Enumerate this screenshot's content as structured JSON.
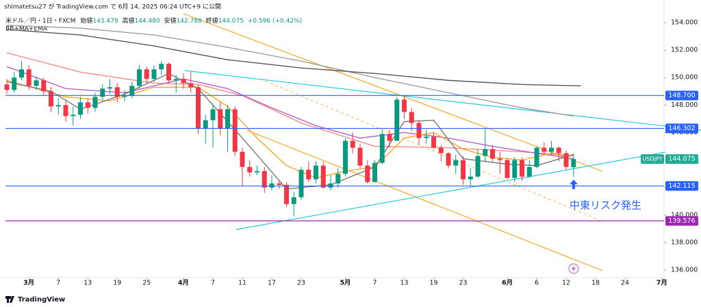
{
  "chart_data": {
    "type": "candlestick",
    "published": "shimatetsu27 が TradingView.com で 6月 14, 2025 06:24 UTC+9 に公開",
    "title": "米ドル／円・1日・FXCM",
    "stats": [
      {
        "label": "始値",
        "text": "143.479"
      },
      {
        "label": "高値",
        "text": "144.480"
      },
      {
        "label": "安値",
        "text": "142.788"
      },
      {
        "label": "終値",
        "text": "144.075"
      }
    ],
    "change": "+0.596 (+0.42%)",
    "indicators": "BB+MA+EMA",
    "annotation": "中東リスク発生",
    "brand": "TradingView",
    "up_color": "#089981",
    "down_color": "#f23645",
    "open": [
      149.5,
      149.1,
      150.0,
      150.6,
      149.4,
      149.8,
      149.0,
      147.9,
      148.0,
      147.2,
      147.3,
      148.2,
      147.8,
      148.6,
      149.2,
      149.3,
      148.6,
      148.7,
      149.4,
      150.6,
      149.9,
      150.6,
      151.0,
      149.8,
      149.9,
      149.6,
      149.3,
      146.3,
      146.9,
      147.7,
      146.3,
      147.7,
      144.6,
      143.5,
      143.1,
      143.2,
      142.0,
      142.3,
      142.2,
      140.8,
      141.3,
      143.3,
      142.6,
      143.6,
      142.0,
      142.3,
      143.0,
      145.4,
      144.9,
      143.6,
      142.4,
      143.8,
      145.9,
      145.4,
      148.4,
      147.5,
      146.7,
      145.6,
      145.7,
      144.9,
      144.5,
      143.6,
      144.0,
      142.6,
      142.8,
      144.3,
      144.8,
      144.1,
      144.0,
      142.7,
      144.0,
      142.8,
      143.5,
      144.9,
      144.6,
      144.9,
      144.5,
      143.479
    ],
    "high": [
      149.9,
      150.4,
      151.2,
      150.9,
      150.1,
      150.0,
      149.3,
      148.5,
      148.3,
      147.9,
      148.6,
      148.5,
      148.9,
      149.5,
      149.9,
      149.6,
      149.1,
      149.7,
      150.9,
      150.8,
      150.9,
      151.2,
      151.1,
      150.2,
      150.3,
      150.4,
      149.5,
      147.3,
      148.1,
      148.2,
      148.0,
      147.9,
      144.9,
      144.0,
      143.6,
      143.5,
      142.9,
      142.5,
      142.4,
      141.7,
      143.5,
      143.9,
      143.9,
      143.9,
      142.9,
      143.4,
      145.6,
      146.0,
      145.2,
      144.0,
      144.0,
      146.2,
      146.2,
      148.6,
      148.7,
      147.8,
      146.9,
      146.2,
      146.0,
      145.1,
      144.6,
      144.4,
      144.3,
      143.4,
      144.8,
      146.3,
      145.1,
      144.6,
      144.1,
      144.2,
      144.2,
      144.0,
      145.0,
      145.3,
      145.4,
      145.0,
      144.7,
      144.48
    ],
    "low": [
      148.8,
      148.9,
      149.8,
      149.1,
      149.1,
      148.7,
      147.5,
      147.3,
      146.8,
      146.5,
      147.0,
      147.4,
      147.5,
      148.4,
      148.8,
      148.2,
      148.3,
      148.5,
      149.2,
      149.6,
      149.7,
      150.2,
      149.6,
      148.9,
      149.2,
      148.9,
      145.9,
      145.2,
      144.9,
      145.8,
      144.6,
      144.3,
      142.1,
      142.8,
      142.9,
      141.6,
      141.8,
      141.9,
      140.6,
      139.9,
      141.1,
      142.4,
      142.3,
      141.9,
      141.8,
      142.0,
      142.8,
      144.5,
      143.4,
      142.3,
      142.4,
      143.7,
      144.9,
      145.4,
      147.0,
      146.1,
      145.1,
      145.2,
      144.8,
      143.9,
      143.4,
      143.0,
      142.2,
      142.1,
      142.7,
      143.9,
      143.9,
      143.0,
      142.6,
      142.4,
      142.5,
      142.7,
      143.4,
      144.4,
      144.4,
      143.9,
      143.3,
      142.788
    ],
    "close": [
      149.1,
      150.0,
      150.6,
      149.4,
      149.8,
      149.0,
      147.9,
      148.0,
      147.2,
      147.3,
      148.2,
      147.8,
      148.6,
      149.2,
      149.3,
      148.6,
      148.7,
      149.4,
      150.6,
      149.9,
      150.6,
      151.0,
      149.8,
      149.9,
      149.6,
      149.3,
      146.3,
      146.9,
      147.7,
      146.3,
      147.7,
      144.6,
      143.5,
      143.1,
      143.2,
      142.0,
      142.3,
      142.2,
      140.8,
      141.3,
      143.3,
      142.6,
      143.6,
      142.0,
      142.3,
      143.0,
      145.4,
      144.9,
      143.6,
      142.4,
      143.8,
      145.9,
      145.4,
      148.4,
      147.5,
      146.7,
      145.6,
      145.7,
      144.9,
      144.5,
      143.6,
      144.0,
      142.6,
      142.8,
      144.3,
      144.8,
      144.1,
      144.0,
      142.7,
      144.0,
      142.8,
      143.5,
      144.9,
      144.6,
      144.9,
      144.5,
      143.5,
      144.075
    ],
    "overlays": [
      {
        "color": "#9e9e9e",
        "x": [
          0,
          10,
          20,
          30,
          40,
          50,
          60,
          70,
          77
        ],
        "values": [
          153.8,
          153.6,
          153.1,
          152.2,
          151.2,
          150.0,
          148.9,
          147.8,
          147.2
        ]
      },
      {
        "color": "#555555",
        "x": [
          0,
          10,
          20,
          30,
          40,
          50,
          60,
          70,
          78
        ],
        "values": [
          153.5,
          153.1,
          152.3,
          151.3,
          150.7,
          150.3,
          149.8,
          149.5,
          149.4
        ]
      },
      {
        "color": "#f28b82",
        "x": [
          0,
          10,
          20,
          26,
          32,
          40,
          50,
          60,
          70,
          77
        ],
        "values": [
          151.8,
          150.4,
          149.6,
          149.5,
          148.7,
          146.7,
          145.0,
          144.9,
          144.6,
          144.3
        ]
      },
      {
        "color": "#b561c9",
        "x": [
          0,
          8,
          16,
          24,
          30,
          36,
          42,
          48,
          54,
          60,
          66,
          72,
          77
        ],
        "values": [
          150.8,
          149.2,
          148.9,
          149.9,
          149.2,
          147.8,
          146.5,
          145.6,
          146.0,
          145.6,
          145.0,
          144.5,
          144.1
        ]
      },
      {
        "color": "#f5a623",
        "x": [
          0,
          8,
          14,
          20,
          26,
          30,
          34,
          38,
          42,
          46,
          50,
          54,
          58,
          62,
          66,
          70,
          74,
          77
        ],
        "values": [
          149.8,
          148.6,
          148.3,
          149.3,
          149.3,
          147.9,
          145.6,
          143.6,
          142.7,
          143.2,
          143.5,
          145.6,
          146.0,
          144.8,
          144.2,
          144.0,
          144.5,
          144.3
        ]
      },
      {
        "color": "#787878",
        "x": [
          0,
          6,
          10,
          16,
          22,
          26,
          32,
          38,
          44,
          50,
          54,
          58,
          62,
          68,
          72,
          77
        ],
        "values": [
          149.7,
          149.0,
          147.7,
          148.8,
          150.3,
          149.2,
          145.6,
          141.9,
          142.2,
          143.5,
          146.8,
          146.9,
          144.1,
          143.7,
          143.6,
          144.4
        ]
      }
    ],
    "levels": [
      {
        "value": 148.7,
        "label": "148.700",
        "color": "#2962ff"
      },
      {
        "value": 146.302,
        "label": "146.302",
        "color": "#2962ff"
      },
      {
        "value": 142.115,
        "label": "142.115",
        "color": "#2962ff"
      },
      {
        "value": 139.576,
        "label": "139.576",
        "color": "#9c27b0"
      }
    ],
    "last_price": {
      "symbol": "USDJPY",
      "value": 144.075,
      "color": "#22ab94"
    },
    "xlim": [
      -0.93,
      89.3
    ],
    "xticks": [
      {
        "value": 3,
        "label": "3月"
      },
      7,
      {
        "value": 11,
        "label": "13"
      },
      {
        "value": 15,
        "label": "19"
      },
      {
        "value": 19,
        "label": "25"
      },
      {
        "value": 24,
        "label": "4月"
      },
      {
        "value": 28,
        "label": "7"
      },
      {
        "value": 32,
        "label": "11"
      },
      {
        "value": 36,
        "label": "17"
      },
      {
        "value": 40,
        "label": "23"
      },
      {
        "value": 46,
        "label": "5月"
      },
      {
        "value": 50,
        "label": "7"
      },
      {
        "value": 54,
        "label": "13"
      },
      {
        "value": 58,
        "label": "19"
      },
      {
        "value": 62,
        "label": "23"
      },
      {
        "value": 68,
        "label": "6月"
      },
      {
        "value": 72,
        "label": "6"
      },
      {
        "value": 76,
        "label": "12"
      },
      {
        "value": 80,
        "label": "18"
      },
      {
        "value": 84,
        "label": "24"
      },
      {
        "value": 89,
        "label": "7月"
      }
    ],
    "ylim": [
      135.456,
      155.645
    ],
    "yticks": [
      {
        "value": 136,
        "label": "136.000"
      },
      {
        "value": 138,
        "label": "138.000"
      },
      {
        "value": 140,
        "label": "140.000"
      },
      {
        "value": 142,
        "label": "142.000"
      },
      {
        "value": 144,
        "label": "144.000"
      },
      {
        "value": 146,
        "label": "146.000"
      },
      {
        "value": 148,
        "label": "148.000"
      },
      {
        "value": 150,
        "label": "150.000"
      },
      {
        "value": 152,
        "label": "152.000"
      },
      {
        "value": 154,
        "label": "154.000"
      }
    ]
  }
}
